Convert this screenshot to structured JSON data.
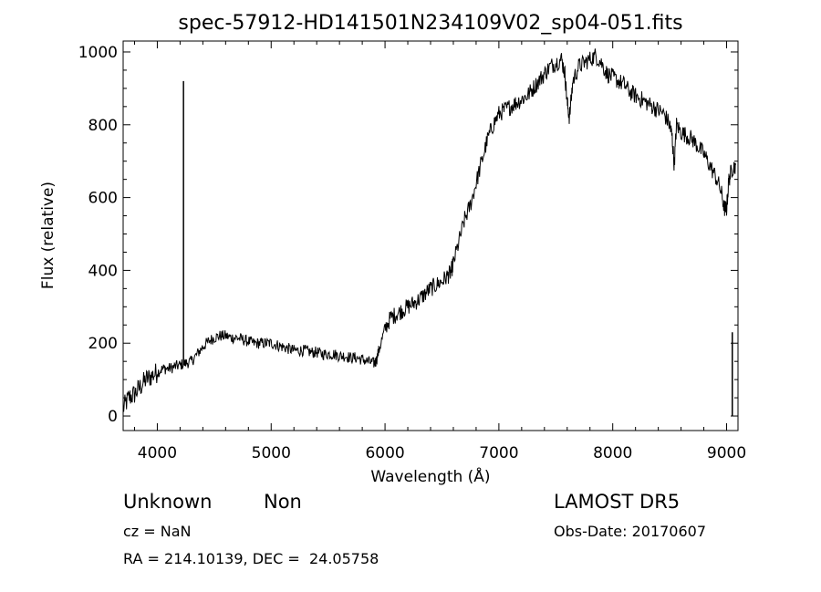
{
  "chart_data": {
    "type": "line",
    "title": "spec-57912-HD141501N234109V02_sp04-051.fits",
    "xlabel": "Wavelength (Å)",
    "ylabel": "Flux (relative)",
    "xlim": [
      3700,
      9100
    ],
    "ylim": [
      -40,
      1030
    ],
    "xticks": [
      4000,
      5000,
      6000,
      7000,
      8000,
      9000
    ],
    "yticks": [
      0,
      200,
      400,
      600,
      800,
      1000
    ],
    "grid": false,
    "series": [
      {
        "x": [
          3700,
          3750,
          3800,
          3850,
          3900,
          3950,
          4000,
          4050,
          4100,
          4150,
          4200,
          4250,
          4300,
          4350,
          4400,
          4450,
          4500,
          4550,
          4600,
          4650,
          4700,
          4750,
          4800,
          4850,
          4900,
          4950,
          5000,
          5050,
          5100,
          5150,
          5200,
          5250,
          5300,
          5350,
          5400,
          5450,
          5500,
          5550,
          5600,
          5650,
          5700,
          5750,
          5800,
          5850,
          5900,
          5920,
          5950,
          6000,
          6050,
          6100,
          6150,
          6200,
          6250,
          6300,
          6350,
          6400,
          6450,
          6500,
          6550,
          6580,
          6600,
          6650,
          6700,
          6750,
          6800,
          6850,
          6900,
          6950,
          7000,
          7050,
          7100,
          7150,
          7200,
          7250,
          7300,
          7350,
          7400,
          7450,
          7500,
          7550,
          7580,
          7600,
          7620,
          7650,
          7700,
          7750,
          7800,
          7850,
          7900,
          7950,
          8000,
          8050,
          8100,
          8150,
          8200,
          8250,
          8300,
          8350,
          8400,
          8450,
          8500,
          8520,
          8540,
          8560,
          8600,
          8650,
          8700,
          8750,
          8800,
          8850,
          8900,
          8950,
          8980,
          9000,
          9020,
          9050,
          9080
        ],
        "y": [
          20,
          50,
          60,
          80,
          100,
          110,
          120,
          130,
          130,
          135,
          140,
          145,
          150,
          170,
          190,
          205,
          215,
          220,
          220,
          215,
          215,
          210,
          205,
          200,
          200,
          200,
          200,
          195,
          190,
          185,
          180,
          180,
          180,
          175,
          175,
          170,
          170,
          170,
          165,
          165,
          160,
          160,
          155,
          150,
          145,
          150,
          185,
          240,
          270,
          280,
          290,
          300,
          310,
          320,
          335,
          350,
          360,
          370,
          385,
          395,
          420,
          480,
          540,
          580,
          640,
          700,
          760,
          800,
          830,
          840,
          850,
          860,
          870,
          880,
          900,
          920,
          940,
          960,
          970,
          980,
          940,
          860,
          820,
          920,
          960,
          970,
          980,
          990,
          970,
          940,
          930,
          920,
          910,
          890,
          880,
          870,
          860,
          850,
          840,
          830,
          800,
          770,
          690,
          800,
          780,
          770,
          760,
          740,
          720,
          690,
          660,
          620,
          570,
          570,
          650,
          680,
          690
        ]
      }
    ],
    "spikes": [
      {
        "x": 4230,
        "y": 920
      },
      {
        "x": 9050,
        "y": 230
      }
    ]
  },
  "info": {
    "object_class": "Unknown",
    "subclass": "Non",
    "redshift": "cz = NaN",
    "coords": "RA = 214.10139, DEC =  24.05758",
    "survey": "LAMOST DR5",
    "obs_date": "Obs-Date: 20170607"
  }
}
